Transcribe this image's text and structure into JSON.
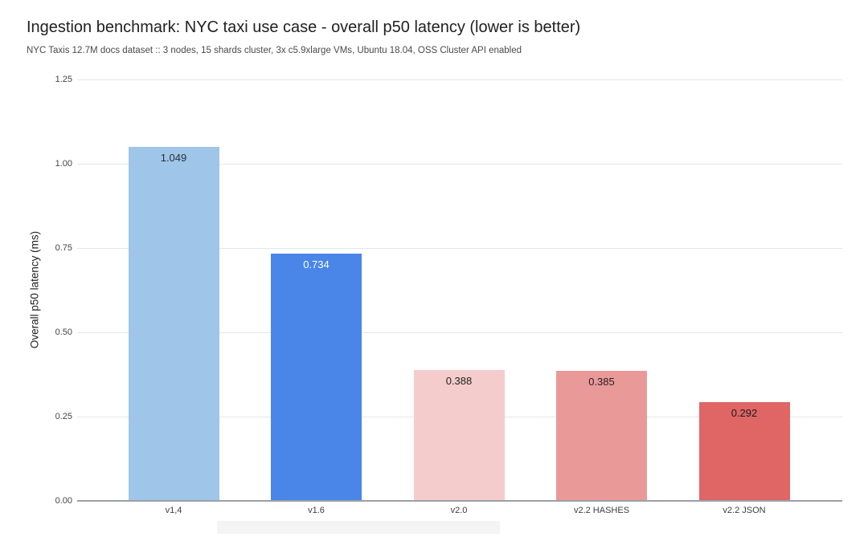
{
  "chart_data": {
    "type": "bar",
    "title": "Ingestion benchmark: NYC taxi use case - overall p50 latency (lower is better)",
    "subtitle": "NYC Taxis 12.7M docs dataset :: 3 nodes, 15 shards cluster, 3x c5.9xlarge VMs, Ubuntu 18.04, OSS Cluster API enabled",
    "categories": [
      "v1,4",
      "v1.6",
      "v2.0",
      "v2.2 HASHES",
      "v2.2 JSON"
    ],
    "values": [
      1.049,
      0.734,
      0.388,
      0.385,
      0.292
    ],
    "value_labels": [
      "1.049",
      "0.734",
      "0.388",
      "0.385",
      "0.292"
    ],
    "bar_colors": [
      "#9fc5e8",
      "#4a86e8",
      "#f4cccc",
      "#ea9999",
      "#e06666"
    ],
    "value_label_colors": [
      "#24313d",
      "#ffffff",
      "#212121",
      "#212121",
      "#1a1a1a"
    ],
    "xlabel": "",
    "ylabel": "Overall p50 latency (ms)",
    "ylim": [
      0,
      1.25
    ],
    "ytick_values": [
      0.0,
      0.25,
      0.5,
      0.75,
      1.0,
      1.25
    ],
    "ytick_labels": [
      "0.00",
      "0.25",
      "0.50",
      "0.75",
      "1.00",
      "1.25"
    ],
    "grid": true,
    "legend_position": "none",
    "colors": {
      "background": "#ffffff",
      "gridline": "#e6e6e6",
      "axis_line": "#9aa0a6",
      "title_text": "#212121",
      "subtitle_text": "#4a4a4a",
      "tick_text": "#444444"
    }
  }
}
